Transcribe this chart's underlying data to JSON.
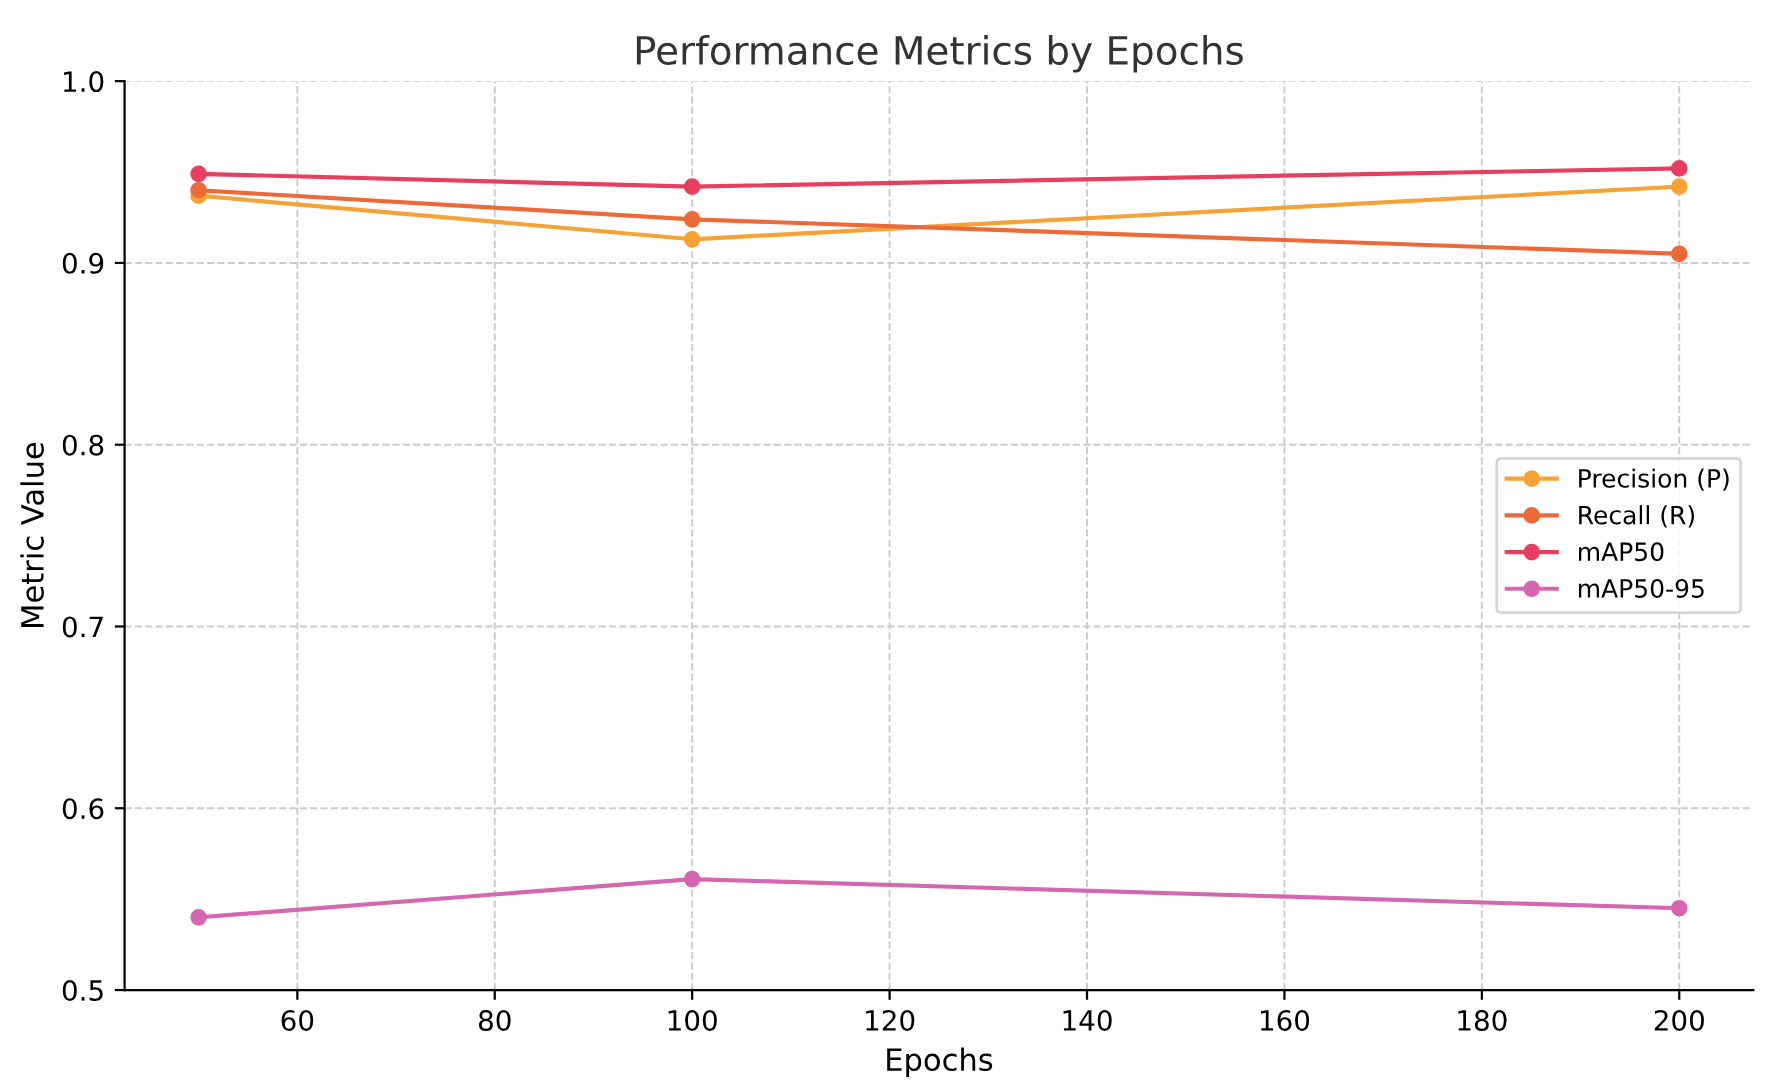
{
  "chart_data": {
    "type": "line",
    "title": "Performance Metrics by Epochs",
    "xlabel": "Epochs",
    "ylabel": "Metric Value",
    "x": [
      50,
      100,
      200
    ],
    "series": [
      {
        "name": "Precision (P)",
        "color": "#f5a236",
        "values": [
          0.937,
          0.913,
          0.942
        ]
      },
      {
        "name": "Recall (R)",
        "color": "#ec6a38",
        "values": [
          0.94,
          0.924,
          0.905
        ]
      },
      {
        "name": "mAP50",
        "color": "#e6405e",
        "values": [
          0.949,
          0.942,
          0.952
        ]
      },
      {
        "name": "mAP50-95",
        "color": "#d467b0",
        "values": [
          0.54,
          0.561,
          0.545
        ]
      }
    ],
    "xlim": [
      42.5,
      207.5
    ],
    "xticks": [
      60,
      80,
      100,
      120,
      140,
      160,
      180,
      200
    ],
    "ylim": [
      0.5,
      1.0
    ],
    "yticks": [
      {
        "value": 0.5,
        "label": "0.5"
      },
      {
        "value": 0.6,
        "label": "0.6"
      },
      {
        "value": 0.7,
        "label": "0.7"
      },
      {
        "value": 0.8,
        "label": "0.8"
      },
      {
        "value": 0.9,
        "label": "0.9"
      },
      {
        "value": 1.0,
        "label": "1.0"
      }
    ],
    "grid": true,
    "legend": "center right",
    "marker": "circle",
    "line_style": "solid"
  }
}
